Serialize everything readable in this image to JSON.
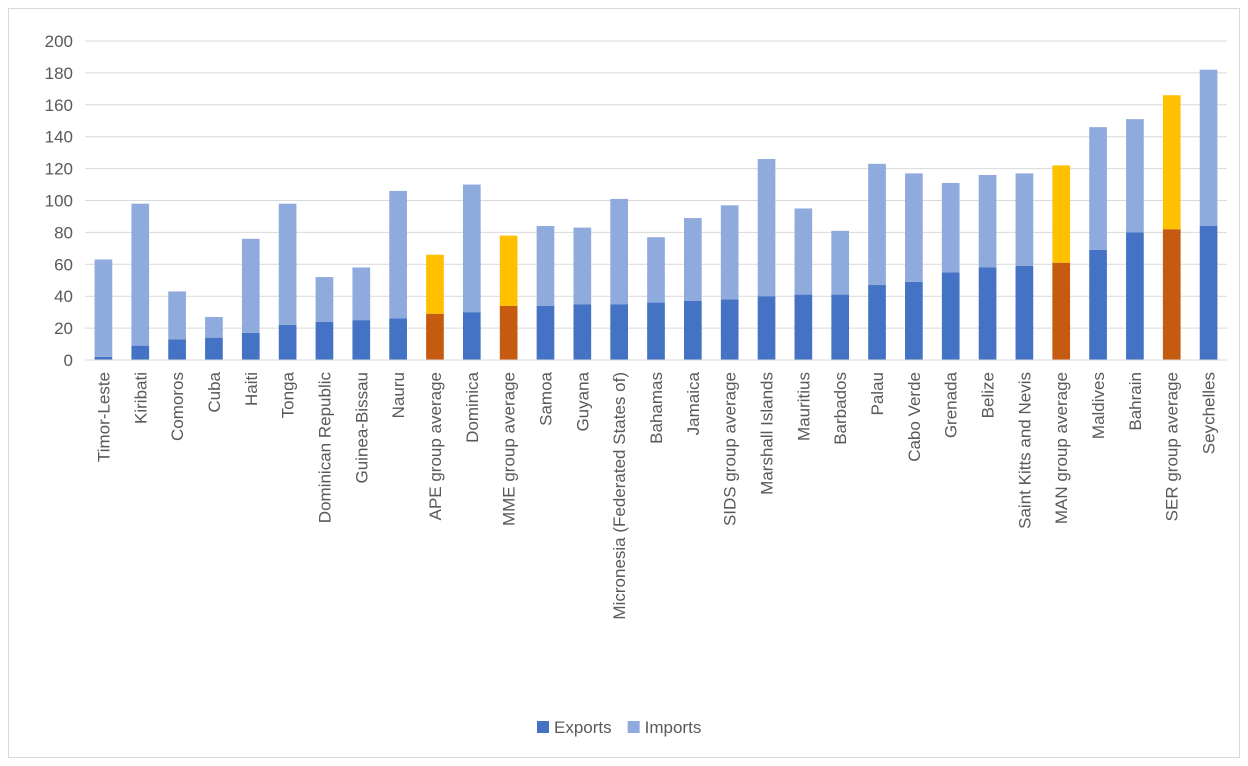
{
  "chart_data": {
    "type": "bar",
    "stacked": true,
    "title": "",
    "xlabel": "",
    "ylabel": "",
    "ylim": [
      0,
      200
    ],
    "yticks": [
      0,
      20,
      40,
      60,
      80,
      100,
      120,
      140,
      160,
      180,
      200
    ],
    "grid": true,
    "legend_position": "bottom",
    "categories": [
      "Timor-Leste",
      "Kiribati",
      "Comoros",
      "Cuba",
      "Haiti",
      "Tonga",
      "Dominican Republic",
      "Guinea-Bissau",
      "Nauru",
      "APE group average",
      "Dominica",
      "MME group average",
      "Samoa",
      "Guyana",
      "Micronesia (Federated States of)",
      "Bahamas",
      "Jamaica",
      "SIDS group average",
      "Marshall Islands",
      "Mauritius",
      "Barbados",
      "Palau",
      "Cabo Verde",
      "Grenada",
      "Belize",
      "Saint Kitts and Nevis",
      "MAN group average",
      "Maldives",
      "Bahrain",
      "SER group average",
      "Seychelles"
    ],
    "highlighted_categories": [
      "APE group average",
      "MME group average",
      "MAN group average",
      "SER group average"
    ],
    "series": [
      {
        "name": "Exports",
        "color": "#4472c4",
        "highlight_color": "#c55a11",
        "values": [
          2,
          9,
          13,
          14,
          17,
          22,
          24,
          25,
          26,
          29,
          30,
          34,
          34,
          35,
          35,
          36,
          37,
          38,
          40,
          41,
          41,
          47,
          49,
          55,
          58,
          59,
          61,
          69,
          80,
          82,
          84
        ]
      },
      {
        "name": "Imports",
        "color": "#8faadc",
        "highlight_color": "#ffc000",
        "values": [
          61,
          89,
          30,
          13,
          59,
          76,
          28,
          33,
          80,
          37,
          80,
          44,
          50,
          48,
          66,
          41,
          52,
          59,
          86,
          54,
          40,
          76,
          68,
          56,
          58,
          58,
          61,
          77,
          71,
          84,
          98
        ]
      }
    ]
  }
}
